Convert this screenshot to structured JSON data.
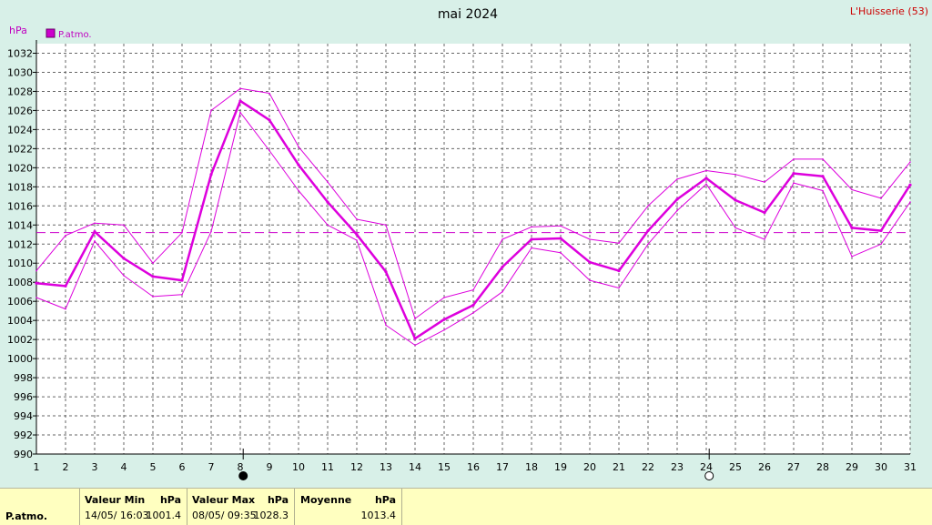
{
  "header": {
    "title": "mai 2024",
    "station": "L'Huisserie (53)",
    "unit": "hPa"
  },
  "legend": {
    "label": "P.atmo.",
    "color": "#cc00cc"
  },
  "chart_data": {
    "type": "line",
    "x": [
      1,
      2,
      3,
      4,
      5,
      6,
      7,
      8,
      9,
      10,
      11,
      12,
      13,
      14,
      15,
      16,
      17,
      18,
      19,
      20,
      21,
      22,
      23,
      24,
      25,
      26,
      27,
      28,
      29,
      30,
      31
    ],
    "xlim": [
      1,
      31
    ],
    "ylim": [
      990,
      1033
    ],
    "yticks": [
      990,
      992,
      994,
      996,
      998,
      1000,
      1002,
      1004,
      1006,
      1008,
      1010,
      1012,
      1014,
      1016,
      1018,
      1020,
      1022,
      1024,
      1026,
      1028,
      1030,
      1032
    ],
    "grid": true,
    "ylabel": "hPa",
    "series": [
      {
        "name": "P.atmo.",
        "role": "mean",
        "values": [
          1007.9,
          1007.6,
          1013.3,
          1010.5,
          1008.6,
          1008.2,
          1019.3,
          1027.0,
          1025.0,
          1020.3,
          1016.4,
          1013.0,
          1009.1,
          1002.1,
          1004.1,
          1005.6,
          1009.6,
          1012.5,
          1012.6,
          1010.1,
          1009.2,
          1013.4,
          1016.7,
          1018.9,
          1016.6,
          1015.3,
          1019.4,
          1019.1,
          1013.7,
          1013.4,
          1018.2
        ]
      },
      {
        "role": "max",
        "values": [
          1009.2,
          1012.9,
          1014.2,
          1014.0,
          1010.0,
          1013.2,
          1026.0,
          1028.3,
          1027.8,
          1022.2,
          1018.5,
          1014.6,
          1014.0,
          1004.2,
          1006.4,
          1007.2,
          1012.5,
          1013.8,
          1013.9,
          1012.5,
          1012.1,
          1016.0,
          1018.8,
          1019.7,
          1019.3,
          1018.5,
          1020.9,
          1020.9,
          1017.7,
          1016.8,
          1020.6
        ]
      },
      {
        "role": "min",
        "values": [
          1006.4,
          1005.2,
          1012.3,
          1008.7,
          1006.5,
          1006.7,
          1013.3,
          1025.8,
          1021.8,
          1017.6,
          1014.0,
          1012.4,
          1003.5,
          1001.4,
          1003.0,
          1004.8,
          1007.0,
          1011.6,
          1011.1,
          1008.2,
          1007.4,
          1012.0,
          1015.5,
          1018.3,
          1013.7,
          1012.5,
          1018.4,
          1017.6,
          1010.7,
          1012.0,
          1016.4
        ]
      }
    ],
    "reference_line": {
      "label": "Moyenne",
      "value": 1013.2
    },
    "moon_phases": [
      {
        "day": 8,
        "phase": "new"
      },
      {
        "day": 24,
        "phase": "full"
      }
    ]
  },
  "footer": {
    "row_label": "P.atmo.",
    "min": {
      "header": "Valeur Min",
      "unit": "hPa",
      "date": "14/05/  16:03",
      "value": "1001.4"
    },
    "max": {
      "header": "Valeur Max",
      "unit": "hPa",
      "date": "08/05/  09:35",
      "value": "1028.3"
    },
    "avg": {
      "header": "Moyenne",
      "unit": "hPa",
      "value": "1013.4"
    }
  }
}
